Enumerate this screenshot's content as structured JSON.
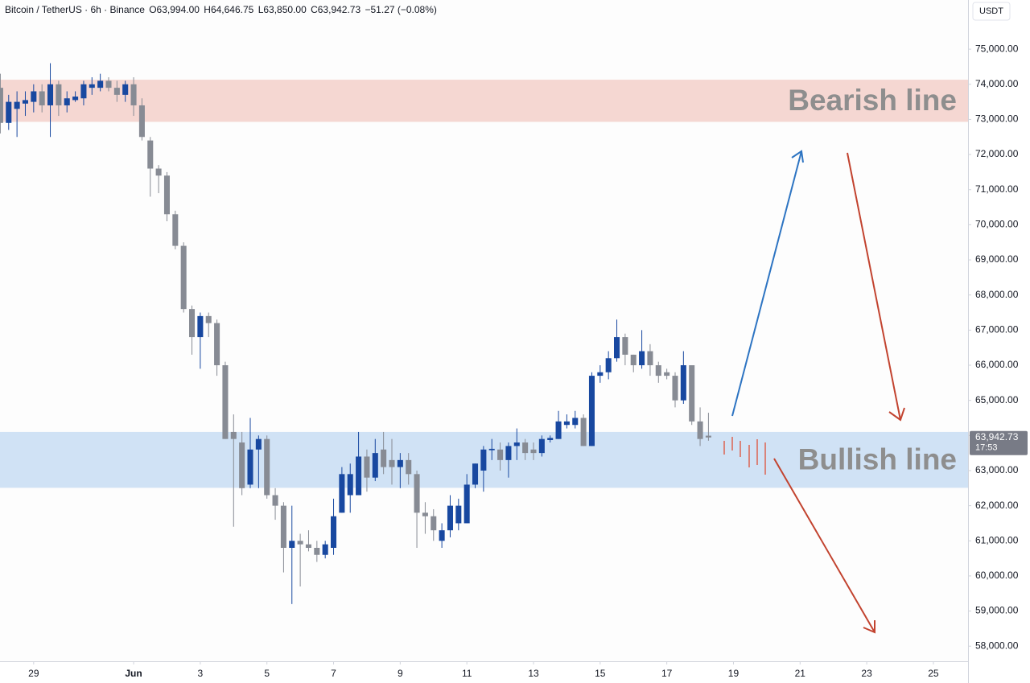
{
  "chart_data": {
    "type": "candlestick",
    "header": {
      "symbol": "Bitcoin / TetherUS · 6h · Binance",
      "open": "O63,994.00",
      "high": "H64,646.75",
      "low": "L63,850.00",
      "close": "C63,942.73",
      "change": "−51.27 (−0.08%)"
    },
    "currency": "USDT",
    "last_price_label": "63,942.73",
    "countdown": "17:53",
    "up_color": "#1848a0",
    "down_color": "#878b94",
    "grid": false,
    "xlim": [
      -1.01,
      28.04
    ],
    "ylim": [
      57570,
      76400
    ],
    "xticks": [
      {
        "value": 0,
        "label": "29"
      },
      {
        "value": 3,
        "label": "Jun"
      },
      {
        "value": 5,
        "label": "3"
      },
      {
        "value": 7,
        "label": "5"
      },
      {
        "value": 9,
        "label": "7"
      },
      {
        "value": 11,
        "label": "9"
      },
      {
        "value": 13,
        "label": "11"
      },
      {
        "value": 15,
        "label": "13"
      },
      {
        "value": 17,
        "label": "15"
      },
      {
        "value": 19,
        "label": "17"
      },
      {
        "value": 21,
        "label": "19"
      },
      {
        "value": 23,
        "label": "21"
      },
      {
        "value": 25,
        "label": "23"
      },
      {
        "value": 27,
        "label": "25"
      }
    ],
    "yticks": [
      {
        "value": 58000,
        "label": "58,000.00"
      },
      {
        "value": 59000,
        "label": "59,000.00"
      },
      {
        "value": 60000,
        "label": "60,000.00"
      },
      {
        "value": 61000,
        "label": "61,000.00"
      },
      {
        "value": 62000,
        "label": "62,000.00"
      },
      {
        "value": 63000,
        "label": "63,000.00"
      },
      {
        "value": 64000,
        "label": "64,000.00"
      },
      {
        "value": 65000,
        "label": "65,000.00"
      },
      {
        "value": 66000,
        "label": "66,000.00"
      },
      {
        "value": 67000,
        "label": "67,000.00"
      },
      {
        "value": 68000,
        "label": "68,000.00"
      },
      {
        "value": 69000,
        "label": "69,000.00"
      },
      {
        "value": 70000,
        "label": "70,000.00"
      },
      {
        "value": 71000,
        "label": "71,000.00"
      },
      {
        "value": 72000,
        "label": "72,000.00"
      },
      {
        "value": 73000,
        "label": "73,000.00"
      },
      {
        "value": 74000,
        "label": "74,000.00"
      },
      {
        "value": 75000,
        "label": "75,000.00"
      }
    ],
    "zones": [
      {
        "label": "Bearish line",
        "from": 72930,
        "to": 74130,
        "color": "#f4d5d0"
      },
      {
        "label": "Bullish line",
        "from": 62510,
        "to": 64100,
        "color": "#cde0f4"
      }
    ],
    "x": [
      -1,
      -0.75,
      -0.5,
      -0.25,
      0,
      0.25,
      0.5,
      0.75,
      1,
      1.25,
      1.5,
      1.75,
      2,
      2.25,
      2.5,
      2.75,
      3,
      3.25,
      3.5,
      3.75,
      4,
      4.25,
      4.5,
      4.75,
      5,
      5.25,
      5.5,
      5.75,
      6,
      6.25,
      6.5,
      6.75,
      7,
      7.25,
      7.5,
      7.75,
      8,
      8.25,
      8.5,
      8.75,
      9,
      9.25,
      9.5,
      9.75,
      10,
      10.25,
      10.5,
      10.75,
      11,
      11.25,
      11.5,
      11.75,
      12,
      12.25,
      12.5,
      12.75,
      13,
      13.25,
      13.5,
      13.75,
      14,
      14.25,
      14.5,
      14.75,
      15,
      15.25,
      15.5,
      15.75,
      16,
      16.25,
      16.5,
      16.75,
      17,
      17.25,
      17.5,
      17.75,
      18,
      18.25,
      18.5,
      18.75,
      19,
      19.25,
      19.5,
      19.75,
      20,
      20.25
    ],
    "open": [
      73900,
      72900,
      73300,
      73450,
      73500,
      73800,
      73400,
      74000,
      73400,
      73550,
      73600,
      73900,
      73900,
      74100,
      73900,
      73700,
      74000,
      73400,
      72400,
      71600,
      71400,
      70300,
      69400,
      67600,
      66800,
      67400,
      67200,
      66000,
      64100,
      63800,
      62600,
      63600,
      63900,
      62300,
      62000,
      60800,
      61000,
      60900,
      60800,
      60600,
      60800,
      61800,
      62300,
      62300,
      63400,
      62800,
      63600,
      63300,
      63100,
      63300,
      62900,
      61800,
      61700,
      61000,
      61300,
      61500,
      61500,
      62600,
      63000,
      63580,
      63600,
      63300,
      63700,
      63800,
      63600,
      63500,
      63870,
      63900,
      64300,
      64300,
      64500,
      63700,
      65700,
      65800,
      66200,
      66800,
      66300,
      66000,
      66400,
      66000,
      65800,
      65700,
      65000,
      66000,
      64400,
      63994
    ],
    "high": [
      74300,
      73700,
      73800,
      73800,
      74000,
      74000,
      74600,
      74100,
      73800,
      73800,
      74100,
      74200,
      74300,
      74200,
      74100,
      74100,
      74200,
      73600,
      72500,
      71700,
      71500,
      70400,
      69500,
      67700,
      67500,
      67500,
      67300,
      66100,
      64600,
      64100,
      64500,
      64000,
      64000,
      62500,
      62100,
      62000,
      61200,
      61300,
      61000,
      61000,
      62200,
      63100,
      63200,
      64100,
      63600,
      63900,
      64100,
      63900,
      63500,
      63500,
      63000,
      62100,
      61900,
      61500,
      62300,
      62200,
      62900,
      63200,
      63700,
      63900,
      63800,
      63800,
      64200,
      63900,
      63800,
      64000,
      64000,
      64700,
      64600,
      64700,
      64600,
      65800,
      66000,
      66400,
      67300,
      66900,
      66300,
      67000,
      66600,
      66100,
      65900,
      65800,
      66400,
      66000,
      64800,
      64646.75
    ],
    "low": [
      72600,
      72700,
      72500,
      73100,
      73200,
      73200,
      72500,
      73100,
      73200,
      73500,
      73400,
      73700,
      73800,
      73800,
      73500,
      73500,
      73100,
      72400,
      70800,
      70900,
      70100,
      69300,
      67500,
      66300,
      65900,
      66800,
      65700,
      63900,
      61400,
      62300,
      62500,
      62500,
      62200,
      61600,
      60100,
      59200,
      59700,
      60700,
      60400,
      60500,
      60600,
      61800,
      61800,
      62300,
      62400,
      62700,
      62900,
      62600,
      62500,
      62600,
      60800,
      61200,
      61000,
      60800,
      61100,
      61300,
      61500,
      62500,
      62400,
      63300,
      63000,
      62800,
      63300,
      63300,
      63300,
      63400,
      63800,
      63900,
      64200,
      64200,
      63700,
      63700,
      65500,
      65600,
      66100,
      66000,
      65800,
      65900,
      65700,
      65500,
      65600,
      64800,
      64900,
      64300,
      63700,
      63850
    ],
    "close": [
      72900,
      73500,
      73500,
      73550,
      73800,
      73400,
      74000,
      73400,
      73600,
      73650,
      74000,
      74000,
      74100,
      73900,
      73700,
      74000,
      73400,
      72500,
      71600,
      71400,
      70300,
      69400,
      67600,
      66800,
      67400,
      67200,
      66000,
      63900,
      63900,
      62500,
      63600,
      63900,
      62300,
      62000,
      60800,
      61000,
      60900,
      60800,
      60600,
      60900,
      61700,
      62900,
      62900,
      63400,
      62800,
      63500,
      63100,
      63100,
      63300,
      62900,
      61800,
      61700,
      61300,
      61300,
      62000,
      62000,
      62600,
      63200,
      63600,
      63620,
      63300,
      63700,
      63800,
      63500,
      63500,
      63900,
      63930,
      64400,
      64400,
      64500,
      63700,
      65700,
      65800,
      66200,
      66800,
      66300,
      66000,
      66400,
      66000,
      65700,
      65700,
      65000,
      66000,
      64400,
      63900,
      63942.73
    ]
  }
}
